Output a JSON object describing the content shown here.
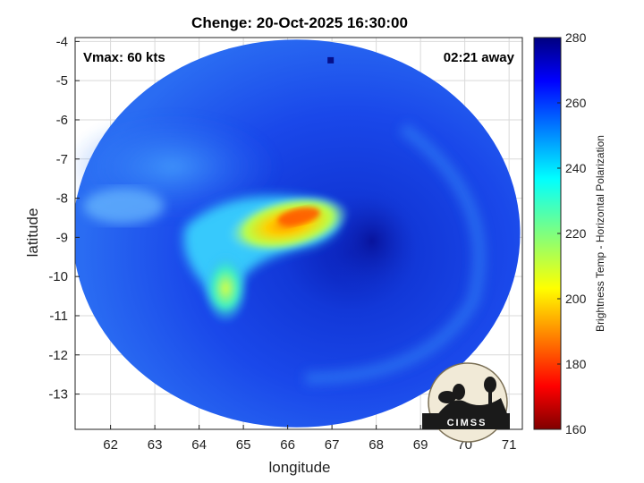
{
  "chart_data": {
    "type": "heatmap",
    "title": "Chenge: 20-Oct-2025 16:30:00",
    "xlabel": "longitude",
    "ylabel": "latitude",
    "xlim": [
      61.2,
      71.3
    ],
    "ylim": [
      -13.9,
      -3.9
    ],
    "x_ticks": [
      "62",
      "63",
      "64",
      "65",
      "66",
      "67",
      "68",
      "69",
      "70",
      "71"
    ],
    "y_ticks": [
      "-4",
      "-5",
      "-6",
      "-7",
      "-8",
      "-9",
      "-10",
      "-11",
      "-12",
      "-13"
    ],
    "grid": true,
    "colorbar": {
      "label": "Brightness Temp - Horizontal Polarization",
      "range": [
        160,
        280
      ],
      "ticks": [
        "280",
        "260",
        "240",
        "220",
        "200",
        "180",
        "160"
      ],
      "colormap": "jet"
    },
    "swath": {
      "center_lon": 66.2,
      "center_lat": -8.9,
      "radius_lon": 5.05,
      "radius_lat": 4.95
    },
    "annotations": {
      "vmax": "Vmax: 60 kts",
      "time_away": "02:21 away"
    },
    "features": [
      {
        "name": "storm-center",
        "lon": 67.9,
        "lat": -9.1,
        "temp": 265
      },
      {
        "name": "cold-core",
        "lon": 66.1,
        "lat": -8.55,
        "temp": 190
      },
      {
        "name": "rainband",
        "lon": 64.6,
        "lat": -10.3,
        "temp": 222
      }
    ]
  },
  "logo": {
    "text": "CIMSS"
  },
  "colors": {
    "background": "#ffffff",
    "deep_blue": "#0a1fb5",
    "swath_blue": "#1844e8",
    "axis": "#222222"
  }
}
